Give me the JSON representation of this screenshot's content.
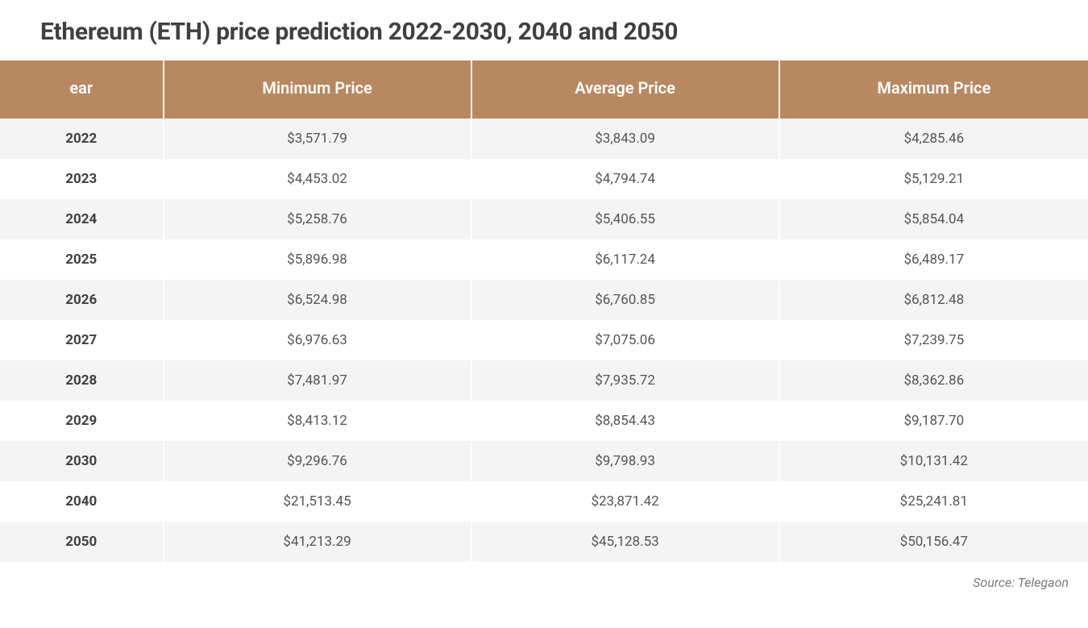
{
  "title": "Ethereum (ETH) price prediction 2022-2030, 2040 and 2050",
  "table": {
    "type": "table",
    "header_bg": "#b88860",
    "header_text_color": "#ffffff",
    "header_fontsize": 20,
    "header_fontweight": 600,
    "row_odd_bg": "#f4f4f4",
    "row_even_bg": "#ffffff",
    "cell_text_color": "#555555",
    "year_text_color": "#404040",
    "cell_fontsize": 17,
    "vertical_divider_color": "#ffffff",
    "column_widths_pct": [
      15,
      28.3,
      28.3,
      28.4
    ],
    "columns": [
      "ear",
      "Minimum Price",
      "Average Price",
      "Maximum Price"
    ],
    "rows": [
      [
        "2022",
        "$3,571.79",
        "$3,843.09",
        "$4,285.46"
      ],
      [
        "2023",
        "$4,453.02",
        "$4,794.74",
        "$5,129.21"
      ],
      [
        "2024",
        "$5,258.76",
        "$5,406.55",
        "$5,854.04"
      ],
      [
        "2025",
        "$5,896.98",
        "$6,117.24",
        "$6,489.17"
      ],
      [
        "2026",
        "$6,524.98",
        "$6,760.85",
        "$6,812.48"
      ],
      [
        "2027",
        "$6,976.63",
        "$7,075.06",
        "$7,239.75"
      ],
      [
        "2028",
        "$7,481.97",
        "$7,935.72",
        "$8,362.86"
      ],
      [
        "2029",
        "$8,413.12",
        "$8,854.43",
        "$9,187.70"
      ],
      [
        "2030",
        "$9,296.76",
        "$9,798.93",
        "$10,131.42"
      ],
      [
        "2040",
        "$21,513.45",
        "$23,871.42",
        "$25,241.81"
      ],
      [
        "2050",
        "$41,213.29",
        "$45,128.53",
        "$50,156.47"
      ]
    ]
  },
  "source_label": "Source: Telegaon",
  "title_fontsize": 30,
  "title_color": "#404040",
  "background_color": "#ffffff",
  "source_color": "#7a7a7a",
  "source_fontsize": 16
}
